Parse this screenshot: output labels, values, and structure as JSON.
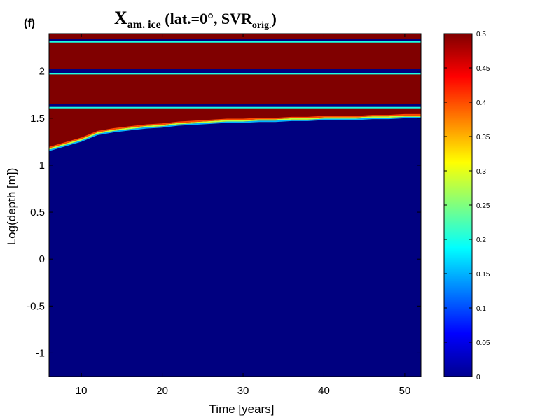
{
  "panel_label": "(f)",
  "title": {
    "main": "X",
    "sub1": "am. ice",
    "mid": " (lat.=0°, SVR",
    "sub2": "orig.",
    "end": ")"
  },
  "chart_data": {
    "type": "heatmap",
    "xlabel": "Time [years]",
    "ylabel": "Log(depth [m])",
    "xlim": [
      6,
      52
    ],
    "ylim": [
      -1.25,
      2.4
    ],
    "x_ticks": [
      10,
      20,
      30,
      40,
      50
    ],
    "y_ticks": [
      -1,
      -0.5,
      0,
      0.5,
      1,
      1.5,
      2
    ],
    "y_tick_labels": [
      "-1",
      "-0.5",
      "0",
      "0.5",
      "1",
      "1.5",
      "2"
    ],
    "colorbar": {
      "colormap": "jet",
      "clim": [
        0,
        0.5
      ],
      "ticks": [
        0,
        0.05,
        0.1,
        0.15,
        0.2,
        0.25,
        0.3,
        0.35,
        0.4,
        0.45,
        0.5
      ],
      "tick_labels": [
        "0",
        "0.05",
        "0.1",
        "0.15",
        "0.2",
        "0.25",
        "0.3",
        "0.35",
        "0.4",
        "0.45",
        "0.5"
      ]
    },
    "ice_front": {
      "time": [
        6,
        8,
        10,
        12,
        14,
        16,
        18,
        20,
        22,
        24,
        26,
        28,
        30,
        32,
        34,
        36,
        38,
        40,
        42,
        44,
        46,
        48,
        50,
        52
      ],
      "log_depth": [
        1.15,
        1.2,
        1.25,
        1.32,
        1.35,
        1.37,
        1.39,
        1.4,
        1.42,
        1.43,
        1.44,
        1.45,
        1.45,
        1.46,
        1.46,
        1.47,
        1.47,
        1.48,
        1.48,
        1.48,
        1.49,
        1.49,
        1.5,
        1.5
      ]
    },
    "rich_ice_zone": {
      "log_depth_range": [
        1.15,
        2.4
      ],
      "value": 0.5
    },
    "ice_free_bands": [
      {
        "name": "band-1.63",
        "log_depth": [
          1.65,
          1.62
        ],
        "value": 0.0
      },
      {
        "name": "band-2.0",
        "log_depth": [
          2.02,
          1.98
        ],
        "value": 0.0
      },
      {
        "name": "band-2.33",
        "log_depth": [
          2.34,
          2.32
        ],
        "value": 0.0
      }
    ]
  }
}
